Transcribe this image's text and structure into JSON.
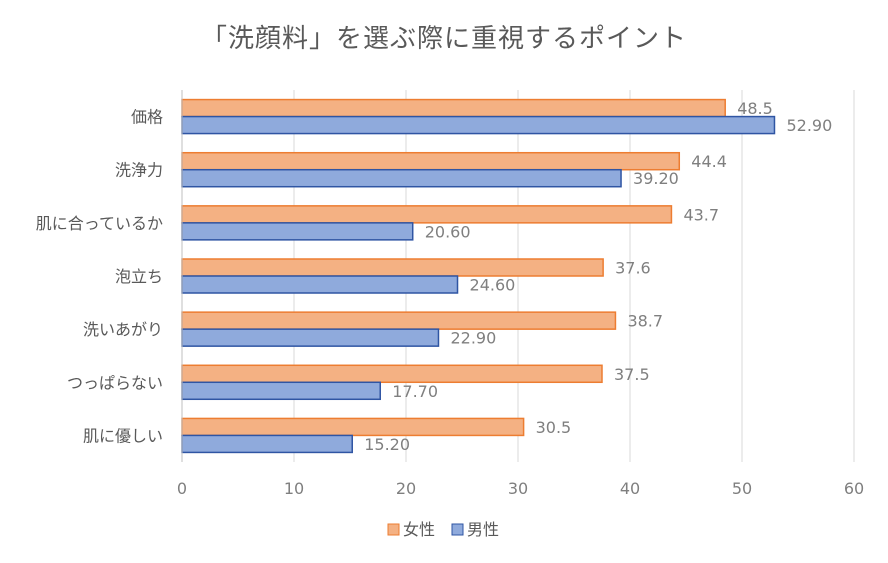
{
  "chart_data": {
    "type": "bar",
    "orientation": "horizontal",
    "title": "「洗顔料」を選ぶ際に重視するポイント",
    "categories": [
      "価格",
      "洗浄力",
      "肌に合っているか",
      "泡立ち",
      "洗いあがり",
      "つっぱらない",
      "肌に優しい"
    ],
    "series": [
      {
        "name": "女性",
        "color": "#f4b183",
        "stroke": "#ed7d31",
        "values": [
          48.5,
          44.4,
          43.7,
          37.6,
          38.7,
          37.5,
          30.5
        ],
        "labels": [
          "48.5",
          "44.4",
          "43.7",
          "37.6",
          "38.7",
          "37.5",
          "30.5"
        ]
      },
      {
        "name": "男性",
        "color": "#8faadc",
        "stroke": "#2f55a3",
        "values": [
          52.9,
          39.2,
          20.6,
          24.6,
          22.9,
          17.7,
          15.2
        ],
        "labels": [
          "52.90",
          "39.20",
          "20.60",
          "24.60",
          "22.90",
          "17.70",
          "15.20"
        ]
      }
    ],
    "xlim": [
      0,
      60
    ],
    "xticks": [
      "0",
      "10",
      "20",
      "30",
      "40",
      "50",
      "60"
    ],
    "grid": true,
    "legend": "bottom"
  }
}
